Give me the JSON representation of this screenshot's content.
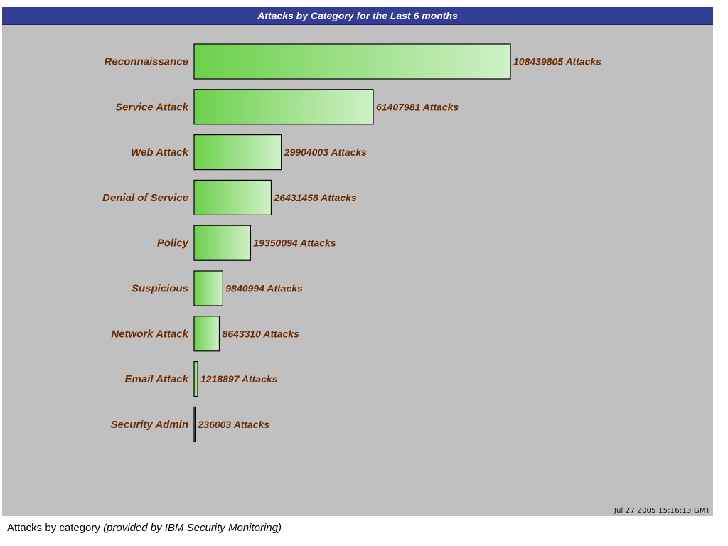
{
  "chart_data": {
    "type": "bar",
    "orientation": "horizontal",
    "title": "Attacks by Category for the Last 6 months",
    "categories": [
      "Reconnaissance",
      "Service Attack",
      "Web Attack",
      "Denial of Service",
      "Policy",
      "Suspicious",
      "Network Attack",
      "Email Attack",
      "Security Admin"
    ],
    "values": [
      108439805,
      61407981,
      29904003,
      26431458,
      19350094,
      9840994,
      8643310,
      1218897,
      236003
    ],
    "value_suffix": " Attacks",
    "bar_color_start": "#6bd04a",
    "bar_color_end": "#d0f0c8",
    "grid": false
  },
  "timestamp": "Jul 27 2005 15:16:13 GMT",
  "caption": {
    "main": "Attacks by category ",
    "source": "(provided by IBM Security Monitoring)"
  },
  "colors": {
    "panel_background": "#c0c0c0",
    "title_bar": "#313e93",
    "label_text": "#6b2d00"
  }
}
